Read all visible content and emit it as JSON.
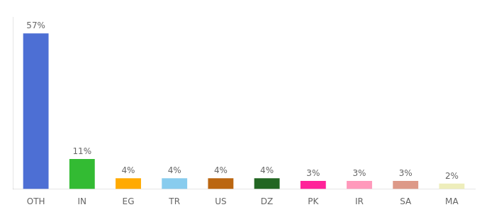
{
  "chart_data": {
    "type": "bar",
    "categories": [
      "OTH",
      "IN",
      "EG",
      "TR",
      "US",
      "DZ",
      "PK",
      "IR",
      "SA",
      "MA"
    ],
    "values": [
      57,
      11,
      4,
      4,
      4,
      4,
      3,
      3,
      3,
      2
    ],
    "colors": [
      "#4d6fd4",
      "#33bb33",
      "#ffaa00",
      "#88ccee",
      "#bb6611",
      "#226622",
      "#ff2299",
      "#ff99bb",
      "#dd9988",
      "#eeeebb"
    ],
    "ylim": [
      0,
      63
    ],
    "data_labels": true,
    "value_labels": [
      "57%",
      "11%",
      "4%",
      "4%",
      "4%",
      "4%",
      "3%",
      "3%",
      "3%",
      "2%"
    ],
    "tick_labels": "x",
    "grid": false
  }
}
